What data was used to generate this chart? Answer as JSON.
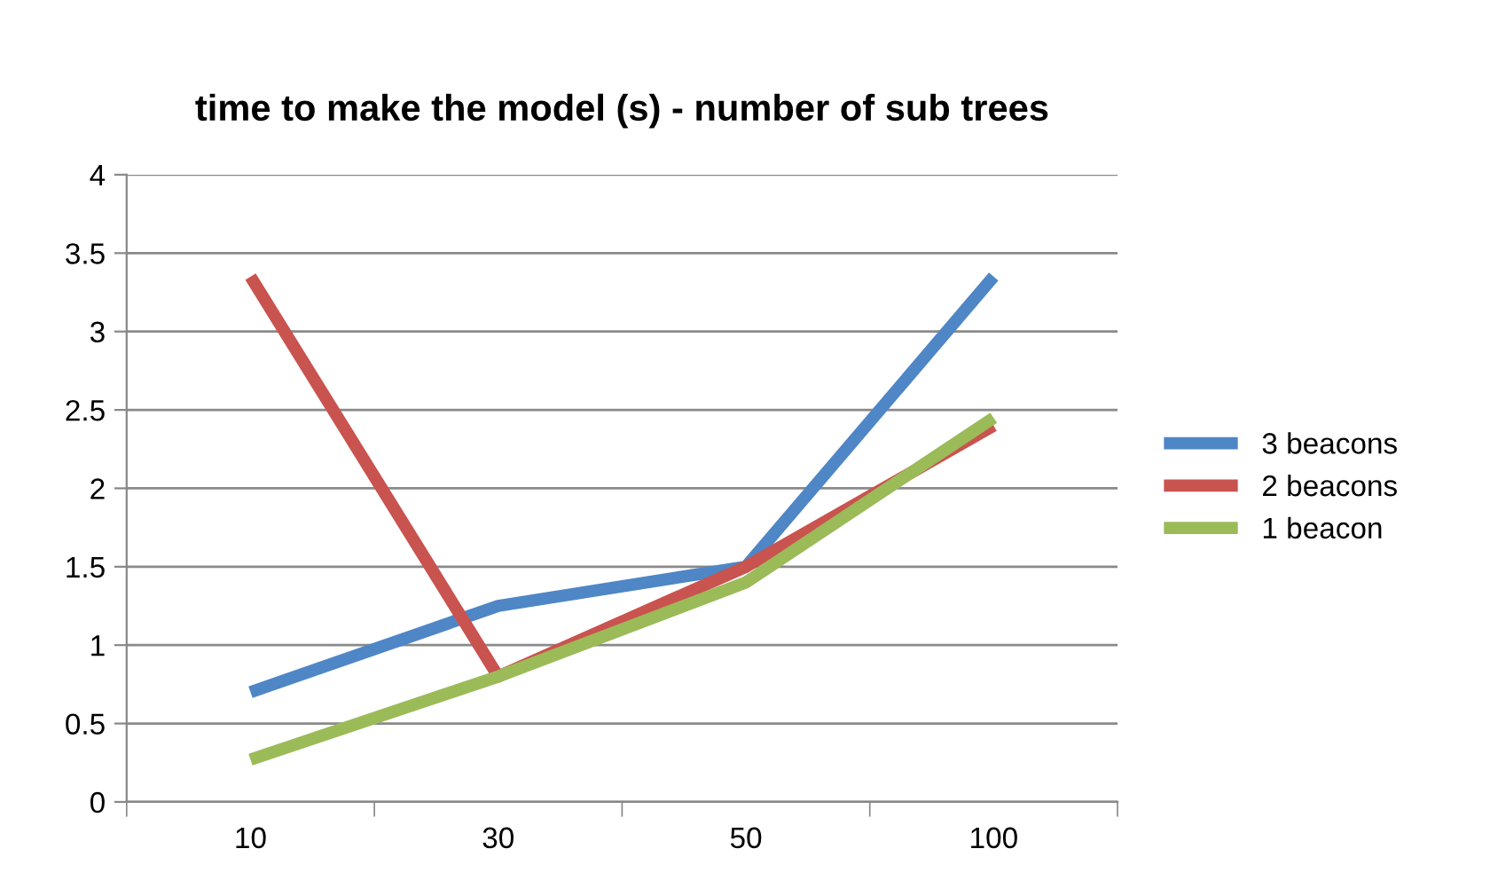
{
  "chart_data": {
    "type": "line",
    "title": "time to make the model (s) - number of sub trees",
    "categories": [
      "10",
      "30",
      "50",
      "100"
    ],
    "series": [
      {
        "name": "3 beacons",
        "color": "#4f86c6",
        "values": [
          0.7,
          1.25,
          1.5,
          3.35
        ]
      },
      {
        "name": "2 beacons",
        "color": "#c9534f",
        "values": [
          3.35,
          0.8,
          1.5,
          2.4
        ]
      },
      {
        "name": "1 beacon",
        "color": "#9bbb59",
        "values": [
          0.27,
          0.8,
          1.4,
          2.45
        ]
      }
    ],
    "ylim": [
      0,
      4
    ],
    "yticks": [
      0,
      0.5,
      1,
      1.5,
      2,
      2.5,
      3,
      3.5,
      4
    ],
    "grid": "y",
    "legend": "right",
    "marker": "none",
    "line_style": "solid"
  }
}
